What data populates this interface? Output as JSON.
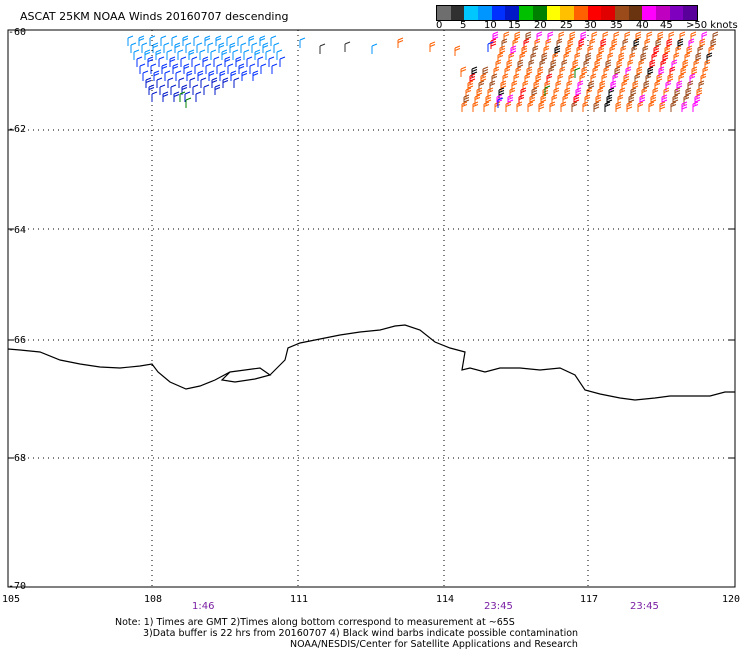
{
  "title": "ASCAT 25KM NOAA Winds 20160707 descending",
  "legend": {
    "colors": [
      "#6e6e6e",
      "#303030",
      "#00c8ff",
      "#0096ff",
      "#0030ff",
      "#0018c8",
      "#00c000",
      "#008000",
      "#ffff00",
      "#ffc000",
      "#ff6000",
      "#ff0000",
      "#e00000",
      "#9b4a1a",
      "#6a3410",
      "#ff00ff",
      "#c000c0",
      "#8000c0",
      "#5a009a"
    ],
    "labels": [
      "0",
      "5",
      "10",
      "15",
      "20",
      "25",
      "30",
      "35",
      "40",
      "45",
      ">50 knots"
    ]
  },
  "axes": {
    "lat_labels": [
      "-60",
      "-62",
      "-64",
      "-66",
      "-68",
      "-70"
    ],
    "lon_labels": [
      "105",
      "108",
      "111",
      "114",
      "117",
      "120"
    ]
  },
  "times": [
    "1:46",
    "23:45",
    "23:45"
  ],
  "notes": {
    "line1": "Note: 1) Times are GMT 2)Times along bottom correspond to measurement at ~65S",
    "line2": "3)Data buffer is 22 hrs from 20160707 4) Black wind barbs indicate possible contamination",
    "line3": "NOAA/NESDIS/Center for Satellite Applications and Research"
  }
}
